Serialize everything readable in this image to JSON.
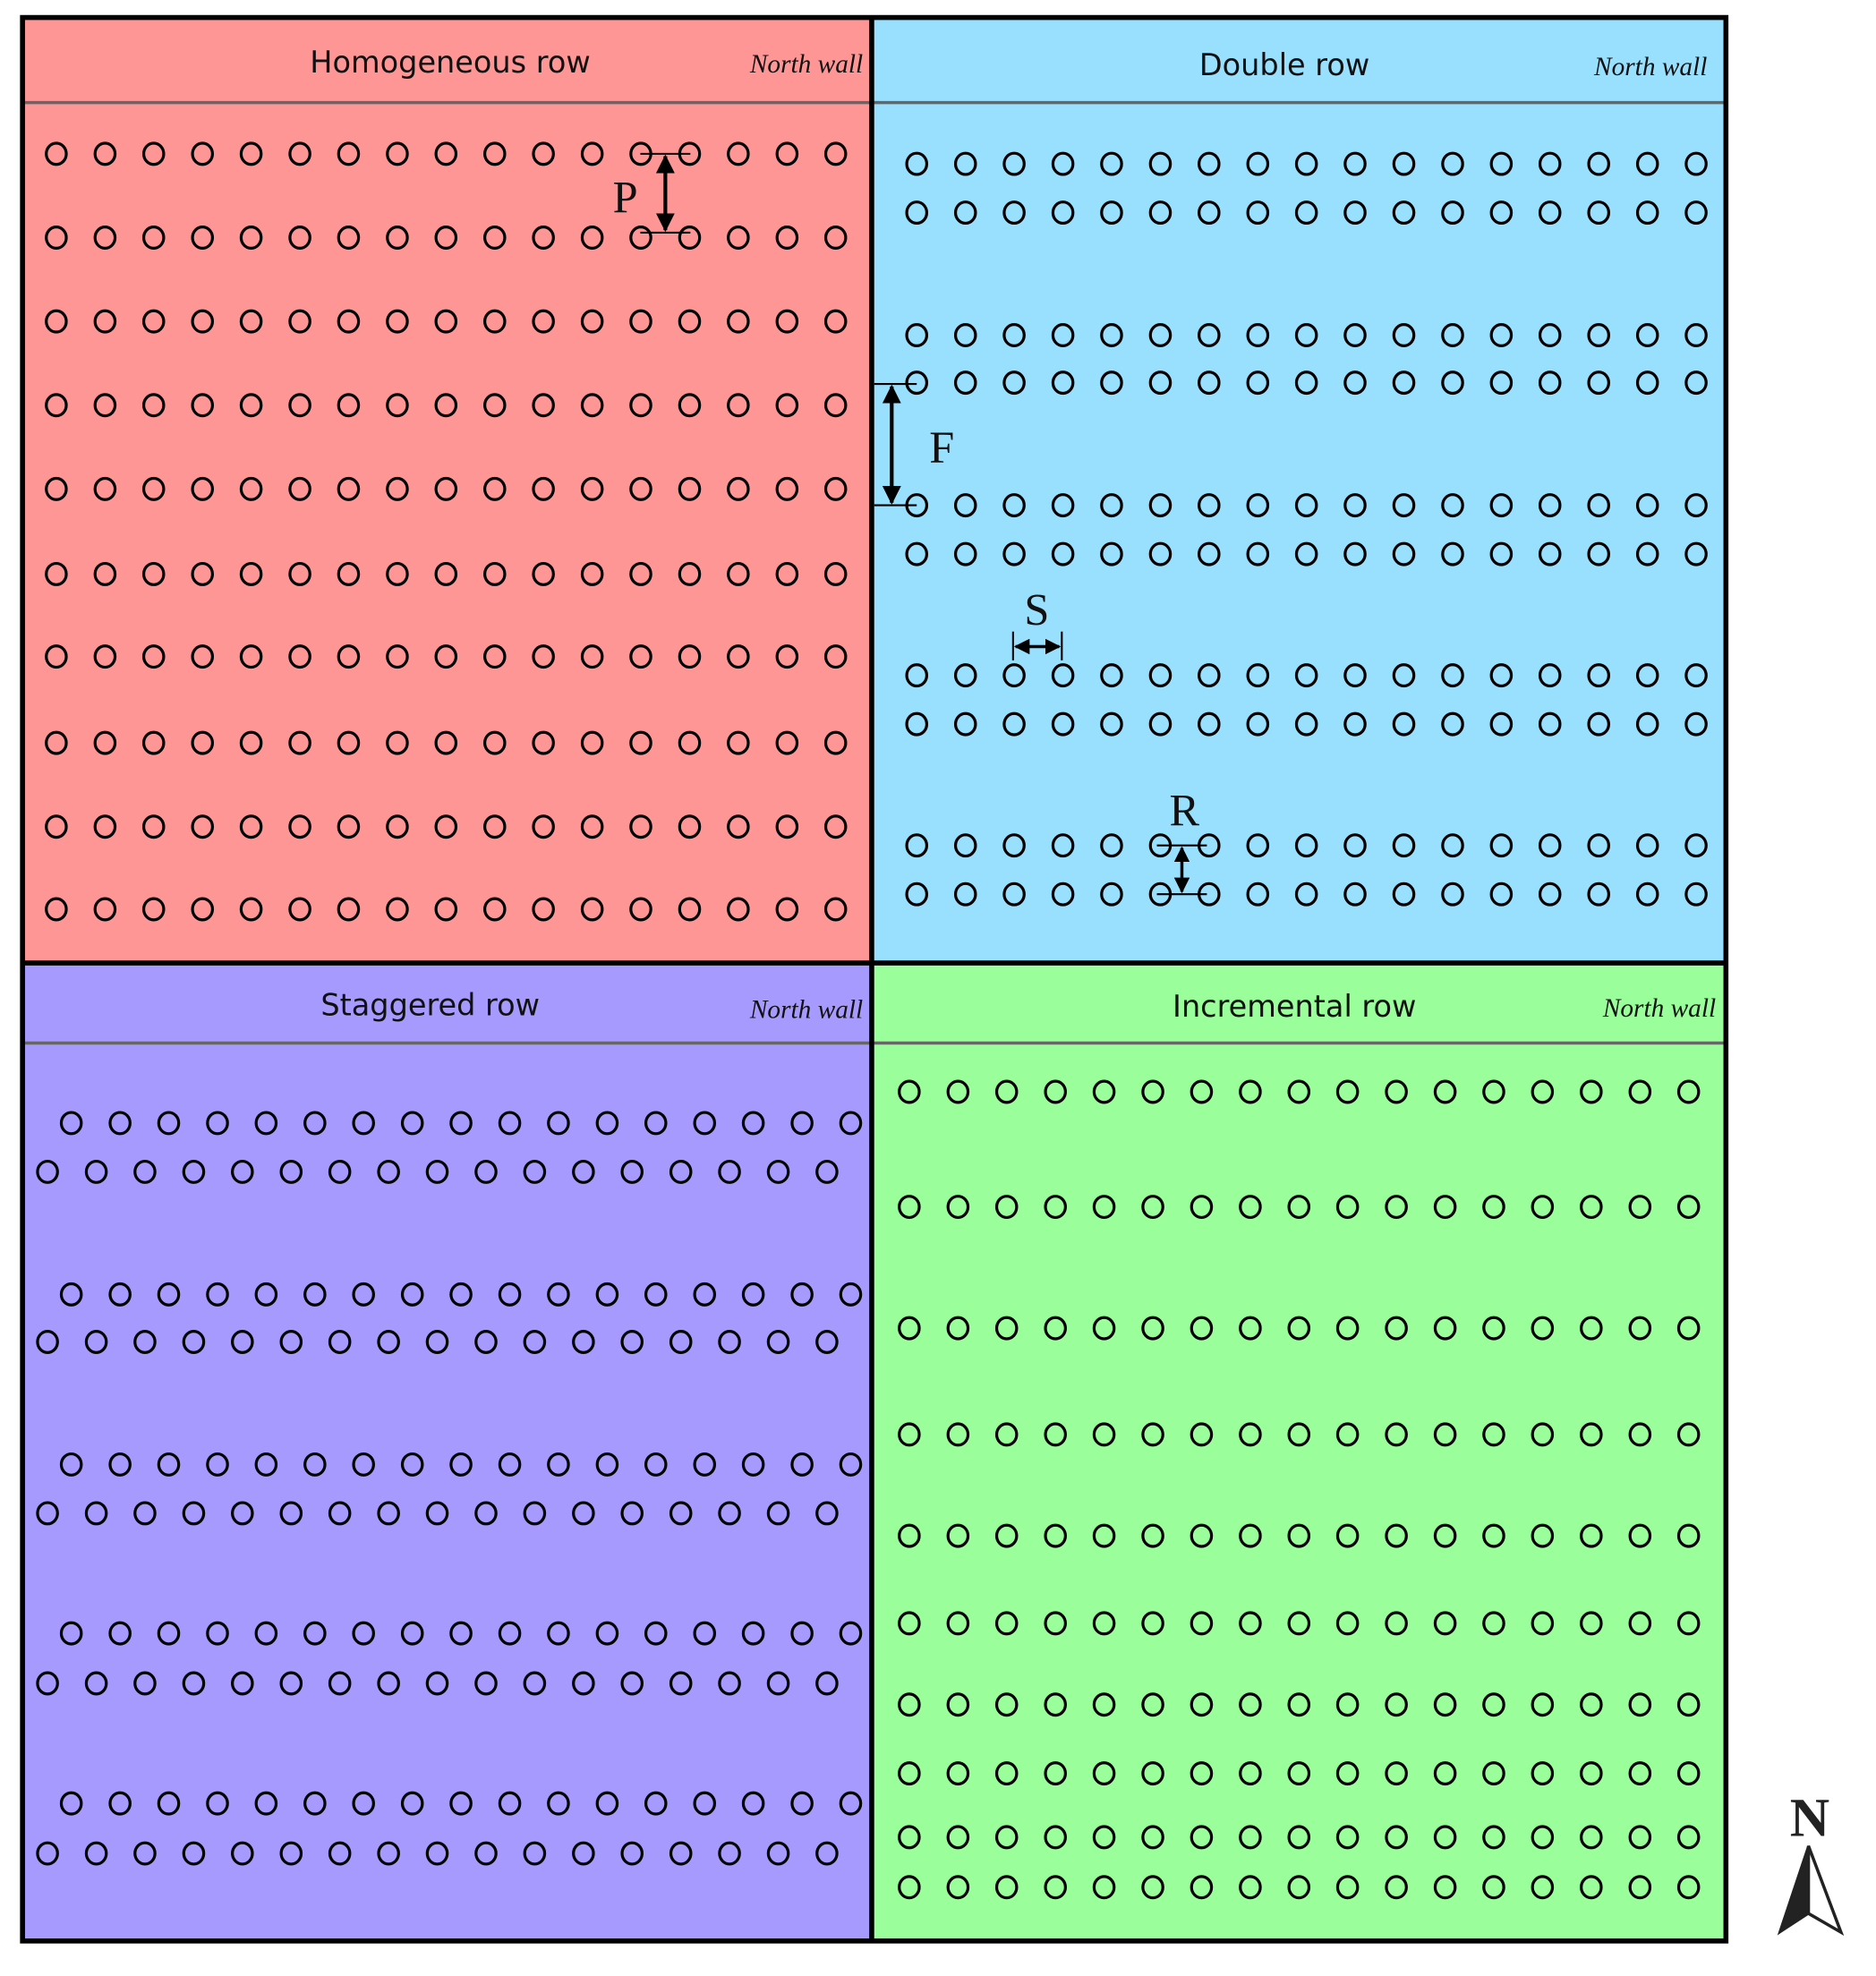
{
  "panels": [
    {
      "title": "Homogeneous  row",
      "wall_label": "North wall",
      "color": "#ff9696"
    },
    {
      "title": "Double  row",
      "wall_label": "North wall",
      "color": "#99e0ff"
    },
    {
      "title": "Staggered row",
      "wall_label": "North wall",
      "color": "#a69aff"
    },
    {
      "title": "Incremental row",
      "wall_label": "North wall",
      "color": "#9aff9a"
    }
  ],
  "annotations": {
    "p": "P",
    "f": "F",
    "s": "S",
    "r": "R"
  },
  "compass": {
    "label": "N",
    "icon": "north-arrow-icon"
  }
}
